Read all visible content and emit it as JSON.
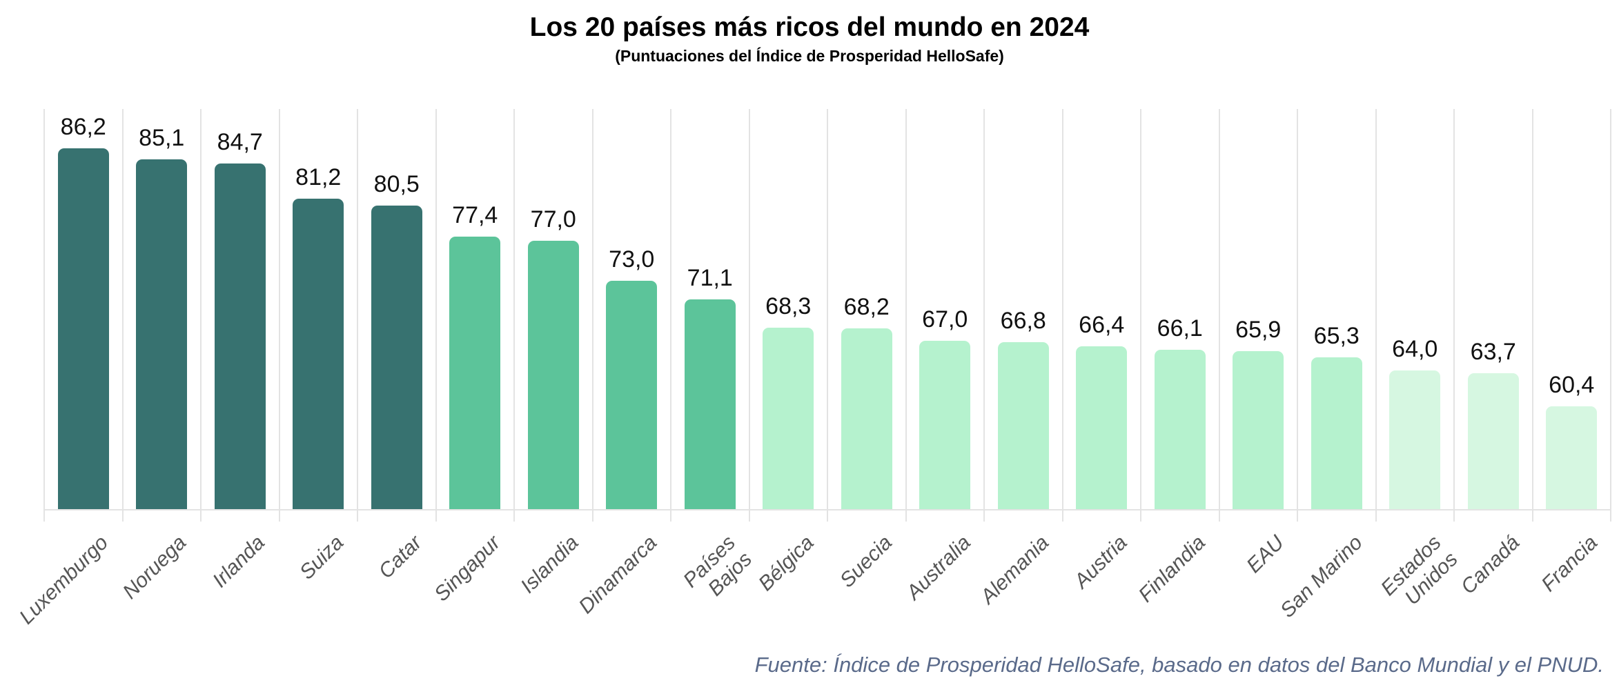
{
  "page": {
    "title": "Los 20 países más ricos del mundo en 2024",
    "subtitle": "(Puntuaciones del Índice de Prosperidad HelloSafe)",
    "source_note": "Fuente: Índice de Prosperidad HelloSafe, basado en datos del Banco Mundial y el PNUD."
  },
  "colors": {
    "bar_dark_teal": "#377270",
    "bar_medium_green": "#5cc49a",
    "bar_light_mint": "#b5f2ce",
    "bar_pale_mint": "#d6f7e1",
    "grid": "#e3e3e3",
    "axis_label": "#555555",
    "value_label": "#111111",
    "source_note": "#5a6a8a",
    "title": "#000000",
    "background": "#ffffff"
  },
  "chart_data": {
    "type": "bar",
    "title": "Los 20 países más ricos del mundo en 2024",
    "subtitle": "(Puntuaciones del Índice de Prosperidad HelloSafe)",
    "source": "Fuente: Índice de Prosperidad HelloSafe, basado en datos del Banco Mundial y el PNUD.",
    "categories": [
      "Luxemburgo",
      "Noruega",
      "Irlanda",
      "Suiza",
      "Catar",
      "Singapur",
      "Islandia",
      "Dinamarca",
      "Países\nBajos",
      "Bélgica",
      "Suecia",
      "Australia",
      "Alemania",
      "Austria",
      "Finlandia",
      "EAU",
      "San Marino",
      "Estados\nUnidos",
      "Canadá",
      "Francia"
    ],
    "values": [
      86.2,
      85.1,
      84.7,
      81.2,
      80.5,
      77.4,
      77.0,
      73.0,
      71.1,
      68.3,
      68.2,
      67.0,
      66.8,
      66.4,
      66.1,
      65.9,
      65.3,
      64.0,
      63.7,
      60.4
    ],
    "value_labels": [
      "86,2",
      "85,1",
      "84,7",
      "81,2",
      "80,5",
      "77,4",
      "77,0",
      "73,0",
      "71,1",
      "68,3",
      "68,2",
      "67,0",
      "66,8",
      "66,4",
      "66,1",
      "65,9",
      "65,3",
      "64,0",
      "63,7",
      "60,4"
    ],
    "bar_colors": [
      "#377270",
      "#377270",
      "#377270",
      "#377270",
      "#377270",
      "#5cc49a",
      "#5cc49a",
      "#5cc49a",
      "#5cc49a",
      "#b5f2ce",
      "#b5f2ce",
      "#b5f2ce",
      "#b5f2ce",
      "#b5f2ce",
      "#b5f2ce",
      "#b5f2ce",
      "#b5f2ce",
      "#d6f7e1",
      "#d6f7e1",
      "#d6f7e1"
    ],
    "ylim": [
      50,
      90
    ],
    "xlabel": "",
    "ylabel": "",
    "grid": "vertical category separators only, light gray",
    "legend": "none",
    "decimal_separator": ",",
    "x_tick_label_style": "italic, rotated 45deg",
    "bar_label_position": "above bar"
  }
}
